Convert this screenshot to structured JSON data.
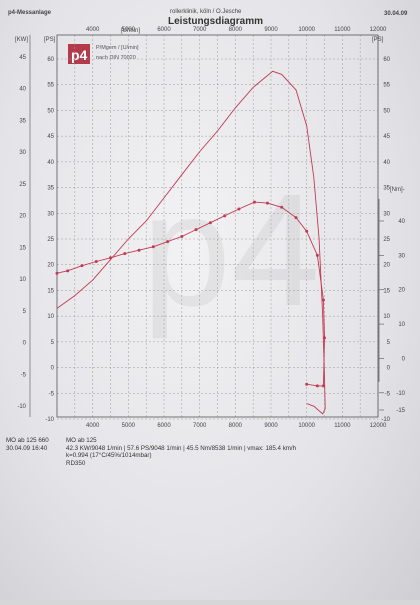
{
  "header": {
    "left": "p4-Messanlage",
    "center": "rollerklinik, köln / O.Jesche",
    "date": "30.04.09",
    "title": "Leistungsdiagramm"
  },
  "legend": {
    "logo": "p4",
    "line1": "P/Mgem / [U/min]",
    "line2": "nach DIN 70020"
  },
  "axes": {
    "kw_unit": "[KW]",
    "ps_unit": "[PS]",
    "rpm_unit": "[U/min]",
    "nm_unit": "[Nm]-"
  },
  "footer": {
    "left_line1": "MO ab 125 660",
    "left_line2": "30.04.09  16:40",
    "title": "MO ab 125",
    "line1": "42.3 KW/9048 1/min  |  57.6 PS/9048 1/min  |  45.5 Nm/8538 1/min  |  vmax: 185.4 km/h",
    "line2": "k=0.994 (17°C/45%/1014mbar)",
    "line3": "RD350"
  },
  "chart_data": {
    "type": "line",
    "title": "Leistungsdiagramm",
    "x_axis": {
      "label": "[U/min]",
      "range": [
        3000,
        12000
      ],
      "ticks": [
        4000,
        5000,
        6000,
        7000,
        8000,
        9000,
        10000,
        11000,
        12000
      ]
    },
    "y_left_kw": {
      "label": "[KW]",
      "range": [
        -10,
        47
      ],
      "ticks": [
        -10,
        -5,
        0,
        5,
        10,
        15,
        20,
        25,
        30,
        35,
        40,
        45
      ]
    },
    "y_left_ps": {
      "label": "[PS]",
      "range": [
        -10,
        65
      ],
      "ticks": [
        -10,
        -5,
        0,
        5,
        10,
        15,
        20,
        25,
        30,
        35,
        40,
        45,
        50,
        55,
        60
      ]
    },
    "y_right_ps": {
      "label": "[PS]",
      "ticks": [
        -10,
        -5,
        0,
        5,
        10,
        15,
        20,
        25,
        30,
        35,
        40,
        45,
        50,
        55,
        60
      ]
    },
    "y_right_nm": {
      "label": "[Nm]-",
      "range": [
        -15,
        46
      ],
      "ticks": [
        -15,
        -10,
        0,
        10,
        20,
        30,
        40
      ]
    },
    "series": [
      {
        "name": "P",
        "unit": "PS",
        "color": "#c23a52",
        "points": [
          [
            3000,
            11.5
          ],
          [
            3500,
            14
          ],
          [
            4000,
            17
          ],
          [
            4500,
            21
          ],
          [
            5000,
            25
          ],
          [
            5500,
            28.5
          ],
          [
            6000,
            33
          ],
          [
            6500,
            37.5
          ],
          [
            7000,
            42
          ],
          [
            7500,
            46
          ],
          [
            8000,
            50.5
          ],
          [
            8500,
            54.5
          ],
          [
            9048,
            57.6
          ],
          [
            9300,
            57
          ],
          [
            9700,
            54
          ],
          [
            10000,
            47
          ],
          [
            10200,
            37
          ],
          [
            10350,
            25
          ],
          [
            10450,
            10
          ],
          [
            10500,
            -2
          ],
          [
            10520,
            -8
          ],
          [
            10450,
            -9
          ],
          [
            10200,
            -7.5
          ],
          [
            10000,
            -7
          ]
        ]
      },
      {
        "name": "Mgem",
        "unit": "Nm",
        "color": "#c23a52",
        "points": [
          [
            3000,
            24.8
          ],
          [
            3300,
            25.5
          ],
          [
            3700,
            27
          ],
          [
            4100,
            28.2
          ],
          [
            4500,
            29.3
          ],
          [
            4900,
            30.5
          ],
          [
            5300,
            31.5
          ],
          [
            5700,
            32.5
          ],
          [
            6100,
            34
          ],
          [
            6500,
            35.5
          ],
          [
            6900,
            37.5
          ],
          [
            7300,
            39.5
          ],
          [
            7700,
            41.5
          ],
          [
            8100,
            43.5
          ],
          [
            8538,
            45.5
          ],
          [
            8900,
            45.2
          ],
          [
            9300,
            44
          ],
          [
            9700,
            41
          ],
          [
            10000,
            37
          ],
          [
            10300,
            30
          ],
          [
            10470,
            17
          ],
          [
            10500,
            6
          ],
          [
            10470,
            -8
          ],
          [
            10300,
            -8
          ],
          [
            10000,
            -7.5
          ]
        ]
      }
    ]
  }
}
